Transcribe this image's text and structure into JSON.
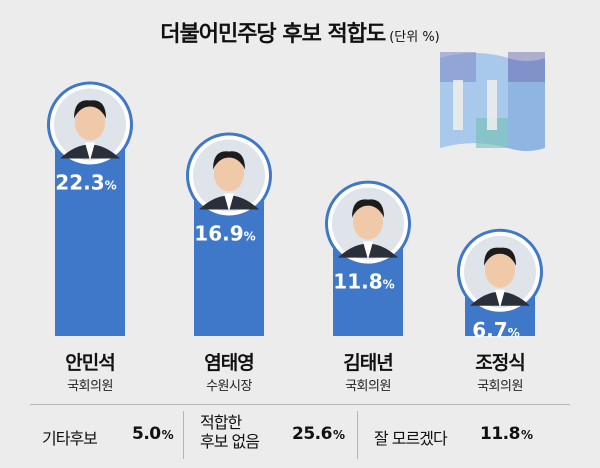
{
  "title": "더불어민주당 후보 적합도",
  "unit": "(단위 %)",
  "chart_data": {
    "type": "bar",
    "categories": [
      "안민석",
      "염태영",
      "김태년",
      "조정식"
    ],
    "roles": [
      "국회의원",
      "수원시장",
      "국회의원",
      "국회의원"
    ],
    "values": [
      22.3,
      16.9,
      11.8,
      6.7
    ],
    "value_labels": [
      "22.3",
      "16.9",
      "11.8",
      "6.7"
    ],
    "value_suffix": "%",
    "ylim": [
      0,
      25
    ],
    "bar_color": "#3f78c9",
    "others": [
      {
        "label": "기타후보",
        "value": 5.0,
        "value_label": "5.0"
      },
      {
        "label": "적합한 후보 없음",
        "value": 25.6,
        "value_label": "25.6"
      },
      {
        "label": "잘 모르겠다",
        "value": 11.8,
        "value_label": "11.8"
      }
    ]
  },
  "footer": {
    "other_label": "기타후보",
    "none_label_line1": "적합한",
    "none_label_line2": "후보 없음",
    "unknown_label": "잘 모르겠다"
  }
}
